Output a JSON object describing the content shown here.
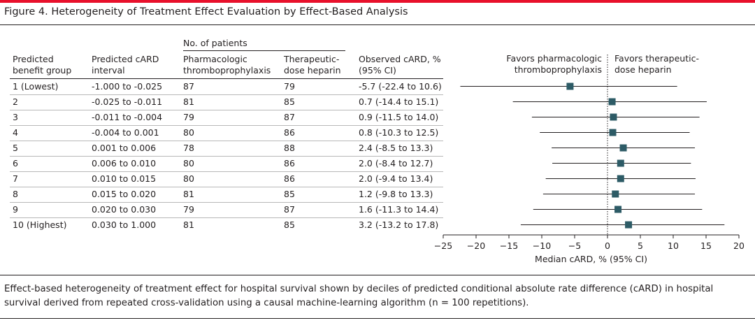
{
  "figure": {
    "title": "Figure 4. Heterogeneity of Treatment Effect Evaluation by Effect-Based Analysis",
    "caption": "Effect-based heterogeneity of treatment effect for hospital survival shown by deciles of predicted conditional absolute rate difference (cARD) in hospital survival derived from repeated cross-validation using a causal machine-learning algorithm (n = 100 repetitions).",
    "accent_color": "#e8102b",
    "marker_color": "#2d5b66"
  },
  "table": {
    "group_header": "No. of patients",
    "headers": {
      "col1_line1": "Predicted",
      "col1_line2": "benefit group",
      "col2_line1": "Predicted cARD",
      "col2_line2": "interval",
      "col3_line1": "Pharmacologic",
      "col3_line2": "thromboprophylaxis",
      "col4_line1": "Therapeutic-",
      "col4_line2": "dose heparin",
      "col5_line1": "Observed cARD, %",
      "col5_line2": "(95% CI)"
    },
    "rows": [
      {
        "group": "1 (Lowest)",
        "interval": "-1.000 to -0.025",
        "pharm": "87",
        "hep": "79",
        "observed": "-5.7 (-22.4 to 10.6)"
      },
      {
        "group": "2",
        "interval": "-0.025 to -0.011",
        "pharm": "81",
        "hep": "85",
        "observed": "0.7 (-14.4 to 15.1)"
      },
      {
        "group": "3",
        "interval": "-0.011 to -0.004",
        "pharm": "79",
        "hep": "87",
        "observed": "0.9 (-11.5 to 14.0)"
      },
      {
        "group": "4",
        "interval": "-0.004 to 0.001",
        "pharm": "80",
        "hep": "86",
        "observed": "0.8 (-10.3 to 12.5)"
      },
      {
        "group": "5",
        "interval": "0.001 to 0.006",
        "pharm": "78",
        "hep": "88",
        "observed": "2.4 (-8.5 to 13.3)"
      },
      {
        "group": "6",
        "interval": "0.006 to 0.010",
        "pharm": "80",
        "hep": "86",
        "observed": "2.0 (-8.4 to 12.7)"
      },
      {
        "group": "7",
        "interval": "0.010 to 0.015",
        "pharm": "80",
        "hep": "86",
        "observed": "2.0 (-9.4 to 13.4)"
      },
      {
        "group": "8",
        "interval": "0.015 to 0.020",
        "pharm": "81",
        "hep": "85",
        "observed": "1.2 (-9.8 to 13.3)"
      },
      {
        "group": "9",
        "interval": "0.020 to 0.030",
        "pharm": "79",
        "hep": "87",
        "observed": "1.6 (-11.3 to 14.4)"
      },
      {
        "group": "10 (Highest)",
        "interval": "0.030 to 1.000",
        "pharm": "81",
        "hep": "85",
        "observed": "3.2 (-13.2 to 17.8)"
      }
    ]
  },
  "chart_data": {
    "type": "scatter",
    "subtype": "forest",
    "xlabel": "Median cARD, % (95% CI)",
    "xlim": [
      -25,
      20
    ],
    "xticks": [
      -25,
      -20,
      -15,
      -10,
      -5,
      0,
      5,
      10,
      15,
      20
    ],
    "reference_line": 0,
    "favors_left": [
      "Favors pharmacologic",
      "thromboprophylaxis"
    ],
    "favors_right": [
      "Favors therapeutic-",
      "dose heparin"
    ],
    "categories": [
      "1 (Lowest)",
      "2",
      "3",
      "4",
      "5",
      "6",
      "7",
      "8",
      "9",
      "10 (Highest)"
    ],
    "points": [
      {
        "estimate": -5.7,
        "lower": -22.4,
        "upper": 10.6
      },
      {
        "estimate": 0.7,
        "lower": -14.4,
        "upper": 15.1
      },
      {
        "estimate": 0.9,
        "lower": -11.5,
        "upper": 14.0
      },
      {
        "estimate": 0.8,
        "lower": -10.3,
        "upper": 12.5
      },
      {
        "estimate": 2.4,
        "lower": -8.5,
        "upper": 13.3
      },
      {
        "estimate": 2.0,
        "lower": -8.4,
        "upper": 12.7
      },
      {
        "estimate": 2.0,
        "lower": -9.4,
        "upper": 13.4
      },
      {
        "estimate": 1.2,
        "lower": -9.8,
        "upper": 13.3
      },
      {
        "estimate": 1.6,
        "lower": -11.3,
        "upper": 14.4
      },
      {
        "estimate": 3.2,
        "lower": -13.2,
        "upper": 17.8
      }
    ],
    "grid": false
  }
}
